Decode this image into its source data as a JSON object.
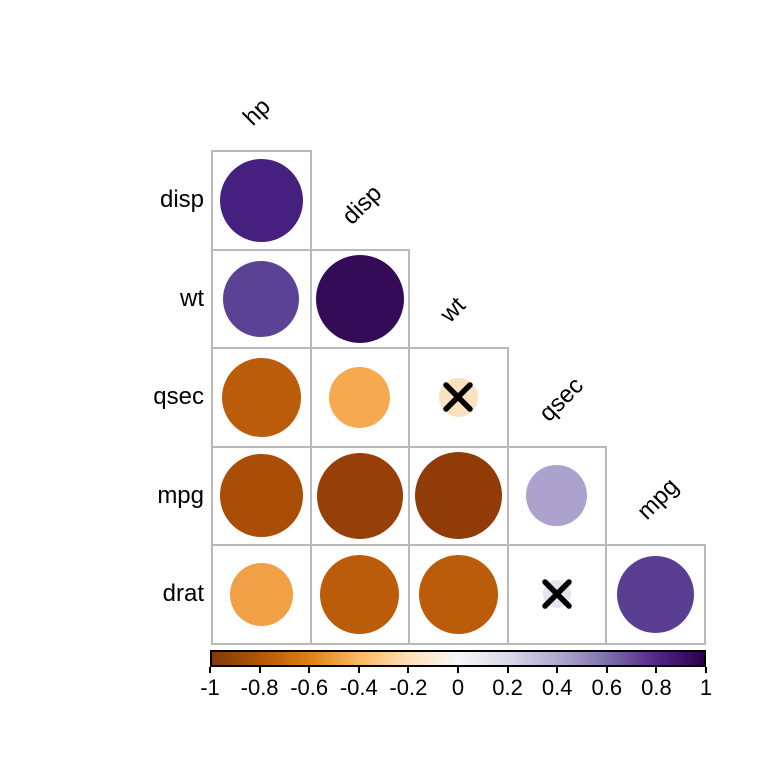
{
  "page": {
    "background": "#ffffff",
    "grid_line_color": "#b9b9b9",
    "text_color": "#000000"
  },
  "chart_data": {
    "type": "heatmap",
    "variant": "correlation-circle-matrix-lower-triangle",
    "title": "",
    "columns": [
      "hp",
      "disp",
      "wt",
      "qsec",
      "mpg"
    ],
    "rows": [
      {
        "label": "disp",
        "cells": [
          {
            "col": "hp",
            "r": 0.79,
            "color": "#46207E",
            "crossed": false
          }
        ]
      },
      {
        "label": "wt",
        "cells": [
          {
            "col": "hp",
            "r": 0.66,
            "color": "#5C4295",
            "crossed": false
          },
          {
            "col": "disp",
            "r": 0.89,
            "color": "#330B57",
            "crossed": false
          }
        ]
      },
      {
        "label": "qsec",
        "cells": [
          {
            "col": "hp",
            "r": -0.71,
            "color": "#BA5C09",
            "crossed": false
          },
          {
            "col": "disp",
            "r": -0.43,
            "color": "#F6A94F",
            "crossed": false
          },
          {
            "col": "wt",
            "r": -0.17,
            "color": "#FBE2BE",
            "crossed": true
          }
        ]
      },
      {
        "label": "mpg",
        "cells": [
          {
            "col": "hp",
            "r": -0.78,
            "color": "#AA4E07",
            "crossed": false
          },
          {
            "col": "disp",
            "r": -0.85,
            "color": "#963F08",
            "crossed": false
          },
          {
            "col": "wt",
            "r": -0.87,
            "color": "#903B08",
            "crossed": false
          },
          {
            "col": "qsec",
            "r": 0.42,
            "color": "#ABA3CE",
            "crossed": false
          }
        ]
      },
      {
        "label": "drat",
        "cells": [
          {
            "col": "hp",
            "r": -0.45,
            "color": "#F2A046",
            "crossed": false
          },
          {
            "col": "disp",
            "r": -0.71,
            "color": "#BA5C09",
            "crossed": false
          },
          {
            "col": "wt",
            "r": -0.71,
            "color": "#BA5C09",
            "crossed": false
          },
          {
            "col": "qsec",
            "r": 0.09,
            "color": "#E5E4EF",
            "crossed": true
          },
          {
            "col": "mpg",
            "r": 0.68,
            "color": "#593E92",
            "crossed": false
          }
        ]
      }
    ],
    "not_significant_marker": "X",
    "legend": {
      "position": "bottom",
      "range": [
        -1,
        1
      ],
      "tick_labels": [
        "-1",
        "-0.8",
        "-0.6",
        "-0.4",
        "-0.2",
        "0",
        "0.2",
        "0.4",
        "0.6",
        "0.8",
        "1"
      ],
      "gradient_colors": [
        "#7F3B08",
        "#B35806",
        "#E08214",
        "#FDB863",
        "#FEE0B6",
        "#F7F7F7",
        "#D8DAEB",
        "#B2ABD2",
        "#8073AC",
        "#542788",
        "#2D004B"
      ]
    }
  }
}
